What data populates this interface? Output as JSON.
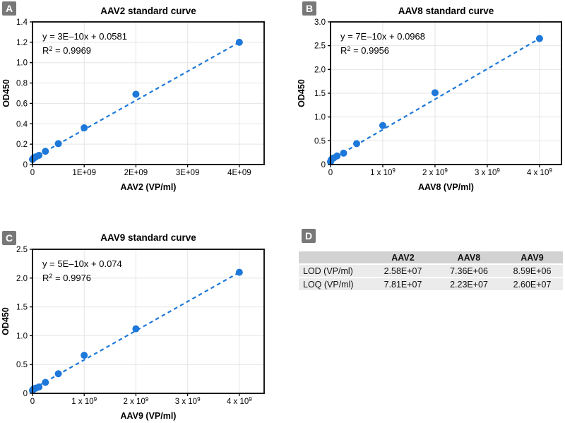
{
  "figure": {
    "panels": [
      {
        "label": "A"
      },
      {
        "label": "B"
      },
      {
        "label": "C"
      },
      {
        "label": "D"
      }
    ]
  },
  "colors": {
    "accent_blue": "#1d78d9",
    "grid": "#e4e4e4",
    "axis": "#000000",
    "panel_label_bg": "#787878",
    "table_header_bg": "#d2d2d2",
    "table_row_bg": "#ebebeb"
  },
  "chart_data": [
    {
      "type": "scatter",
      "panel": "A",
      "title": "AAV2 standard curve",
      "xlabel": "AAV2 (VP/ml)",
      "ylabel": "OD450",
      "xlim": [
        0,
        4480000000.0
      ],
      "ylim": [
        0,
        1.4
      ],
      "grid": true,
      "xtick_values": [
        0,
        1000000000.0,
        2000000000.0,
        3000000000.0,
        4000000000.0
      ],
      "xtick_labels": [
        "0",
        "1E+09",
        "2E+09",
        "3E+09",
        "4E+09"
      ],
      "ytick_values": [
        0,
        0.2,
        0.4,
        0.6,
        0.8,
        1.0,
        1.2,
        1.4
      ],
      "ytick_labels": [
        "0",
        "0.2",
        "0.4",
        "0.6",
        "0.8",
        "1.0",
        "1.2",
        "1.4"
      ],
      "points": [
        [
          0,
          0.05
        ],
        [
          15600000.0,
          0.06
        ],
        [
          31300000.0,
          0.065
        ],
        [
          62500000.0,
          0.075
        ],
        [
          125000000.0,
          0.09
        ],
        [
          250000000.0,
          0.13
        ],
        [
          500000000.0,
          0.205
        ],
        [
          1000000000.0,
          0.36
        ],
        [
          2000000000.0,
          0.69
        ],
        [
          4000000000.0,
          1.2
        ]
      ],
      "trendline": {
        "style": "dashed",
        "x1": 0,
        "y1": 0.0581,
        "x2": 4000000000.0,
        "y2": 1.2
      },
      "equation": "y = 3E–10x + 0.0581",
      "r_squared": "R² = 0.9969"
    },
    {
      "type": "scatter",
      "panel": "B",
      "title": "AAV8 standard curve",
      "xlabel": "AAV8 (VP/ml)",
      "ylabel": "OD450",
      "xlim": [
        0,
        4420000000.0
      ],
      "ylim": [
        0,
        3.0
      ],
      "grid": true,
      "xtick_values": [
        0,
        1000000000.0,
        2000000000.0,
        3000000000.0,
        4000000000.0
      ],
      "xtick_labels": [
        "0",
        "1 x 10⁹",
        "2 x 10⁹",
        "3 x 10⁹",
        "4 x 10⁹"
      ],
      "ytick_values": [
        0,
        0.5,
        1.0,
        1.5,
        2.0,
        2.5,
        3.0
      ],
      "ytick_labels": [
        "0",
        "0.5",
        "1.0",
        "1.5",
        "2.0",
        "2.5",
        "3.0"
      ],
      "points": [
        [
          0,
          0.06
        ],
        [
          15600000.0,
          0.1
        ],
        [
          31300000.0,
          0.12
        ],
        [
          62500000.0,
          0.14
        ],
        [
          125000000.0,
          0.18
        ],
        [
          250000000.0,
          0.24
        ],
        [
          500000000.0,
          0.44
        ],
        [
          1000000000.0,
          0.82
        ],
        [
          2000000000.0,
          1.51
        ],
        [
          4000000000.0,
          2.65
        ]
      ],
      "trendline": {
        "style": "dashed",
        "x1": 0,
        "y1": 0.0968,
        "x2": 4000000000.0,
        "y2": 2.65
      },
      "equation": "y = 7E–10x + 0.0968",
      "r_squared": "R² = 0.9956"
    },
    {
      "type": "scatter",
      "panel": "C",
      "title": "AAV9 standard curve",
      "xlabel": "AAV9 (VP/ml)",
      "ylabel": "OD450",
      "xlim": [
        0,
        4480000000.0
      ],
      "ylim": [
        0,
        2.5
      ],
      "grid": true,
      "xtick_values": [
        0,
        1000000000.0,
        2000000000.0,
        3000000000.0,
        4000000000.0
      ],
      "xtick_labels": [
        "0",
        "1 x 10⁹",
        "2 x 10⁹",
        "3 x 10⁹",
        "4 x 10⁹"
      ],
      "ytick_values": [
        0,
        0.5,
        1.0,
        1.5,
        2.0,
        2.5
      ],
      "ytick_labels": [
        "0",
        "0.5",
        "1.0",
        "1.5",
        "2.0",
        "2.5"
      ],
      "points": [
        [
          0,
          0.05
        ],
        [
          15600000.0,
          0.07
        ],
        [
          31300000.0,
          0.08
        ],
        [
          62500000.0,
          0.09
        ],
        [
          125000000.0,
          0.11
        ],
        [
          250000000.0,
          0.19
        ],
        [
          500000000.0,
          0.34
        ],
        [
          1000000000.0,
          0.66
        ],
        [
          2000000000.0,
          1.12
        ],
        [
          4000000000.0,
          2.1
        ]
      ],
      "trendline": {
        "style": "dashed",
        "x1": 0,
        "y1": 0.074,
        "x2": 4000000000.0,
        "y2": 2.1
      },
      "equation": "y = 5E–10x + 0.074",
      "r_squared": "R² = 0.9976"
    },
    {
      "type": "table",
      "panel": "D",
      "headers": [
        "",
        "AAV2",
        "AAV8",
        "AAV9"
      ],
      "rows": [
        [
          "LOD (VP/ml)",
          "2.58E+07",
          "7.36E+06",
          "8.59E+06"
        ],
        [
          "LOQ (VP/ml)",
          "7.81E+07",
          "2.23E+07",
          "2.60E+07"
        ]
      ]
    }
  ]
}
